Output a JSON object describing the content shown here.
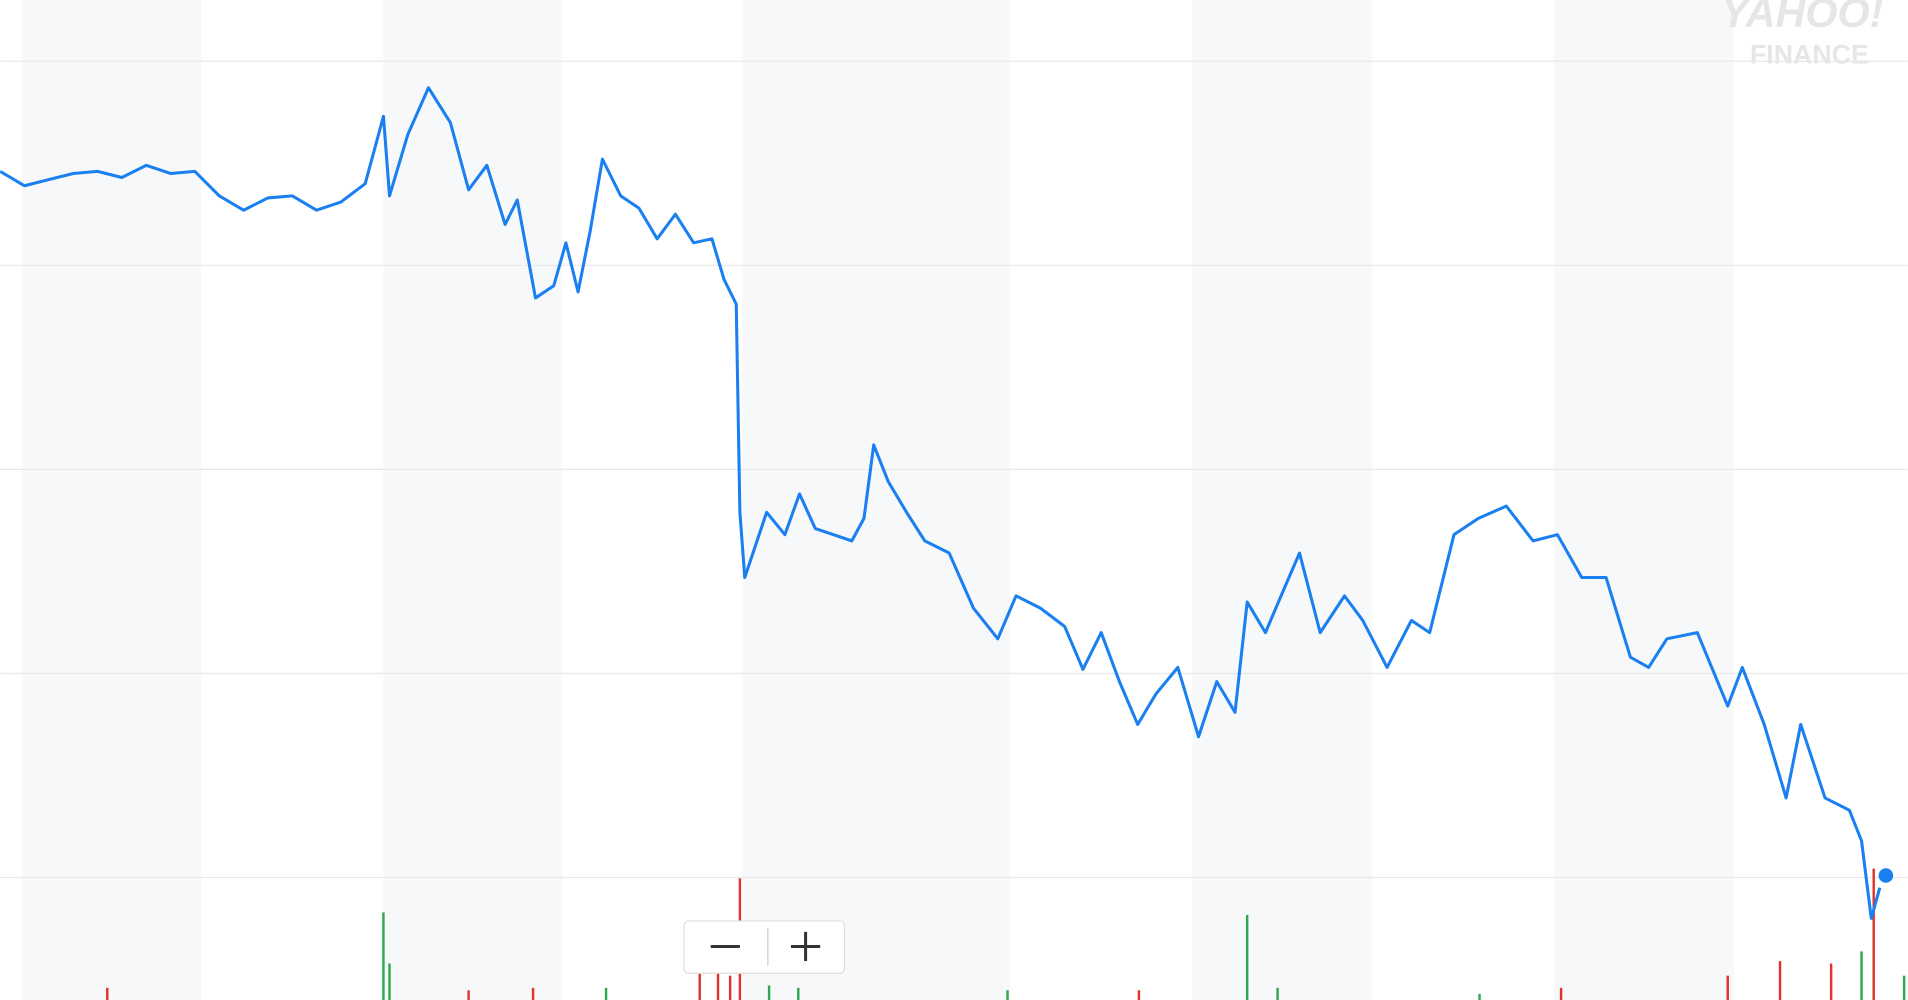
{
  "chart_data": {
    "type": "line",
    "watermark": {
      "line1": "YAHOO!",
      "line2": "FINANCE"
    },
    "xlim": [
      0,
      1568
    ],
    "ylim": [
      -0.6,
      4.3
    ],
    "yticks": [
      0,
      1,
      2,
      3,
      4
    ],
    "grid": true,
    "series": [
      {
        "color": "#1a7ff0",
        "x": [
          0,
          20,
          40,
          60,
          80,
          100,
          120,
          140,
          160,
          180,
          200,
          220,
          240,
          260,
          280,
          300,
          315,
          320,
          335,
          352,
          370,
          385,
          400,
          415,
          425,
          440,
          455,
          465,
          475,
          485,
          495,
          510,
          525,
          540,
          555,
          570,
          585,
          595,
          605,
          608,
          612,
          630,
          645,
          657,
          670,
          685,
          700,
          710,
          718,
          730,
          745,
          760,
          780,
          800,
          820,
          835,
          855,
          875,
          890,
          905,
          920,
          935,
          950,
          968,
          985,
          1000,
          1015,
          1025,
          1040,
          1055,
          1068,
          1085,
          1105,
          1120,
          1140,
          1160,
          1175,
          1195,
          1215,
          1238,
          1260,
          1280,
          1300,
          1320,
          1340,
          1355,
          1370,
          1395,
          1420,
          1432,
          1450,
          1468,
          1480,
          1500,
          1520,
          1530,
          1538,
          1545
        ],
        "values": [
          3.46,
          3.39,
          3.42,
          3.45,
          3.46,
          3.43,
          3.49,
          3.45,
          3.46,
          3.34,
          3.27,
          3.33,
          3.34,
          3.27,
          3.31,
          3.4,
          3.73,
          3.34,
          3.64,
          3.87,
          3.7,
          3.37,
          3.49,
          3.2,
          3.32,
          2.84,
          2.9,
          3.11,
          2.87,
          3.17,
          3.52,
          3.34,
          3.28,
          3.13,
          3.25,
          3.11,
          3.13,
          2.93,
          2.81,
          1.79,
          1.47,
          1.79,
          1.68,
          1.88,
          1.71,
          1.68,
          1.65,
          1.76,
          2.12,
          1.94,
          1.79,
          1.65,
          1.59,
          1.32,
          1.17,
          1.38,
          1.32,
          1.23,
          1.02,
          1.2,
          0.96,
          0.75,
          0.9,
          1.03,
          0.69,
          0.96,
          0.81,
          1.35,
          1.2,
          1.41,
          1.59,
          1.2,
          1.38,
          1.26,
          1.03,
          1.26,
          1.2,
          1.68,
          1.76,
          1.82,
          1.65,
          1.68,
          1.47,
          1.47,
          1.08,
          1.03,
          1.17,
          1.2,
          0.84,
          1.03,
          0.75,
          0.39,
          0.75,
          0.39,
          0.33,
          0.18,
          -0.2,
          -0.05
        ]
      }
    ],
    "last_point": {
      "x": 1550,
      "value": 0.01
    },
    "volume": {
      "vlim": [
        0,
        120
      ],
      "x": [
        88,
        315,
        320,
        385,
        438,
        498,
        575,
        590,
        600,
        608,
        632,
        656,
        828,
        936,
        1025,
        1050,
        1216,
        1283,
        1420,
        1463,
        1505,
        1530,
        1540,
        1565
      ],
      "values": [
        10,
        72,
        30,
        8,
        10,
        10,
        25,
        30,
        20,
        100,
        12,
        10,
        8,
        8,
        70,
        10,
        5,
        10,
        20,
        32,
        30,
        40,
        108,
        20
      ],
      "colors": [
        "#e0342c",
        "#2fa84f",
        "#2fa84f",
        "#e0342c",
        "#e0342c",
        "#2fa84f",
        "#e0342c",
        "#e0342c",
        "#e0342c",
        "#e0342c",
        "#2fa84f",
        "#2fa84f",
        "#2fa84f",
        "#e0342c",
        "#2fa84f",
        "#2fa84f",
        "#2fa84f",
        "#e0342c",
        "#e0342c",
        "#e0342c",
        "#e0342c",
        "#2fa84f",
        "#e0342c",
        "#2fa84f"
      ]
    }
  }
}
